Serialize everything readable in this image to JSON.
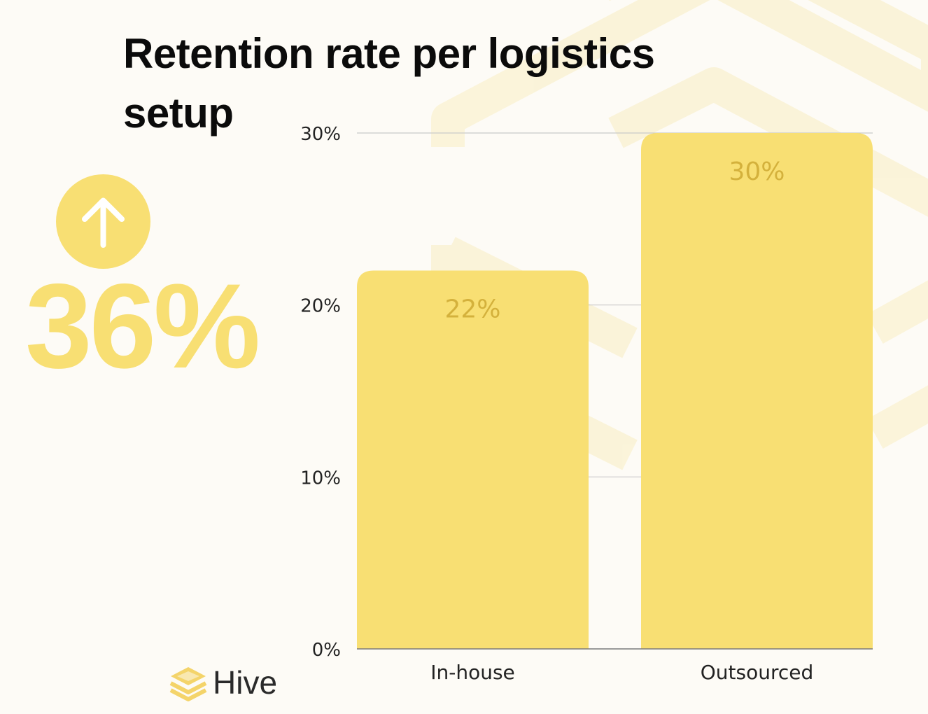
{
  "header": {
    "title": "Retention rate per logistics setup"
  },
  "kpi": {
    "value": "36%",
    "icon": "arrow-up-icon"
  },
  "brand": {
    "name": "Hive",
    "icon": "hive-logo-icon"
  },
  "colors": {
    "bar": "#f8df73",
    "bar_label": "#d4b13c",
    "kpi": "#f8df73",
    "grid": "#c9c9c9",
    "axis": "#7a7a7a",
    "background": "#fdfbf6",
    "decor": "#f9eec2"
  },
  "chart_data": {
    "type": "bar",
    "title": "Retention rate per logistics setup",
    "xlabel": "",
    "ylabel": "",
    "categories": [
      "In-house",
      "Outsourced"
    ],
    "values": [
      22,
      30
    ],
    "value_labels": [
      "22%",
      "30%"
    ],
    "ylim": [
      0,
      30
    ],
    "yticks": [
      0,
      10,
      20,
      30
    ],
    "ytick_labels": [
      "0%",
      "10%",
      "20%",
      "30%"
    ],
    "grid": true,
    "legend": "none"
  }
}
